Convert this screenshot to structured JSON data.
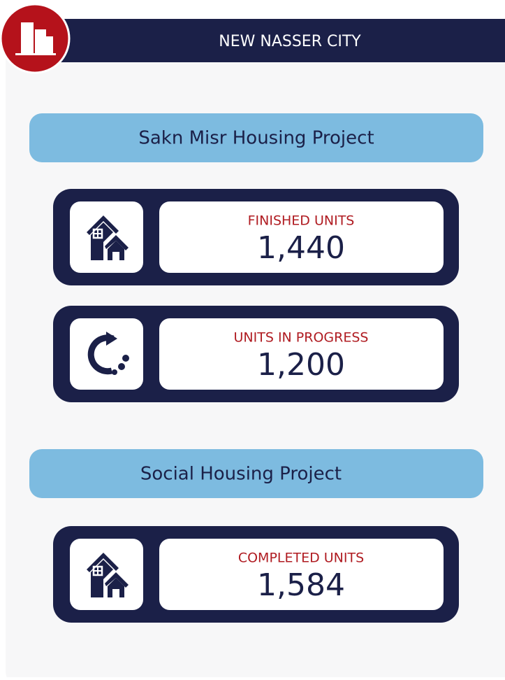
{
  "header": {
    "title": "NEW NASSER CITY"
  },
  "sections": [
    {
      "title": "Sakn Misr Housing Project",
      "cards": [
        {
          "label": "FINISHED UNITS",
          "value": "1,440"
        },
        {
          "label": "UNITS IN PROGRESS",
          "value": "1,200"
        }
      ]
    },
    {
      "title": "Social Housing Project",
      "cards": [
        {
          "label": "COMPLETED UNITS",
          "value": "1,584"
        }
      ]
    }
  ]
}
